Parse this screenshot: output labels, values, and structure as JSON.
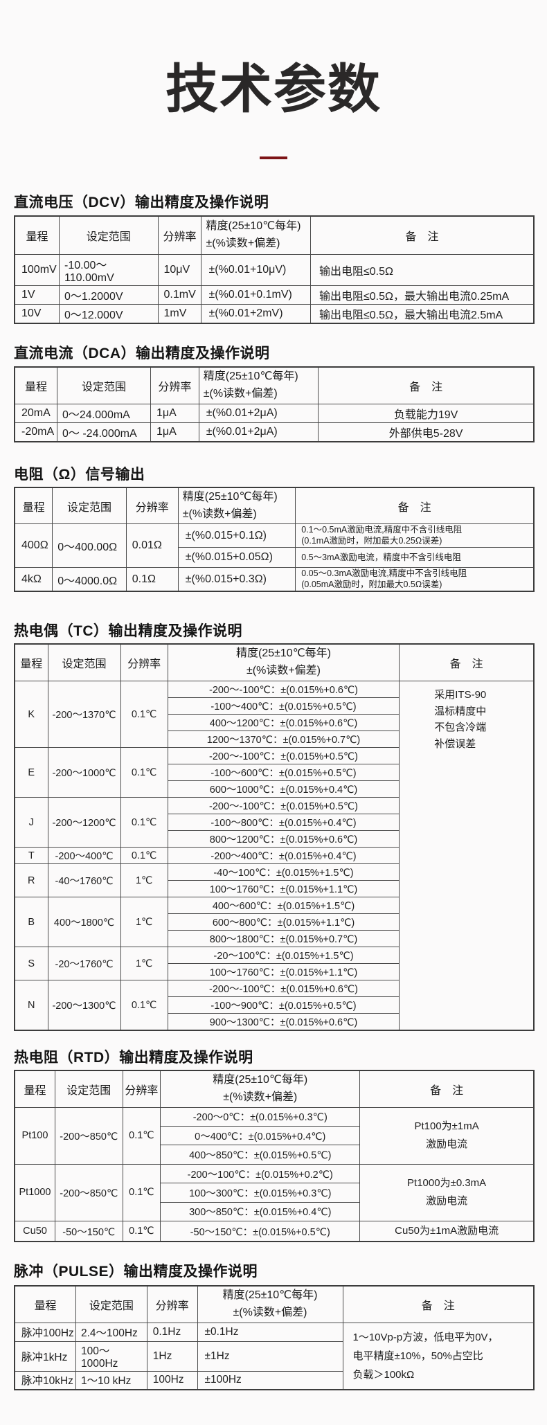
{
  "page": {
    "title": "技术参数",
    "accent_color": "#7d1416"
  },
  "column_headers": {
    "range": "量程",
    "set_range": "设定范围",
    "resolution": "分辨率",
    "accuracy_line1": "精度(25±10℃每年)",
    "accuracy_line2": "±(%读数+偏差)",
    "remark": "备　注"
  },
  "sections": [
    {
      "id": "dcv",
      "heading": "直流电压（DCV）输出精度及操作说明",
      "groups": [
        {
          "range": "100mV",
          "set_range": "-10.00～110.00mV",
          "resolution": "10μV",
          "rows": [
            {
              "accuracy": "±(%0.01+10μV)",
              "remark_lines": [
                "输出电阻≤0.5Ω"
              ]
            }
          ]
        },
        {
          "range": "1V",
          "set_range": "0～1.2000V",
          "resolution": "0.1mV",
          "rows": [
            {
              "accuracy": "±(%0.01+0.1mV)",
              "remark_lines": [
                "输出电阻≤0.5Ω，最大输出电流0.25mA"
              ]
            }
          ]
        },
        {
          "range": "10V",
          "set_range": "0～12.000V",
          "resolution": "1mV",
          "rows": [
            {
              "accuracy": "±(%0.01+2mV)",
              "remark_lines": [
                "输出电阻≤0.5Ω，最大输出电流2.5mA"
              ]
            }
          ]
        }
      ]
    },
    {
      "id": "dca",
      "heading": "直流电流（DCA）输出精度及操作说明",
      "groups": [
        {
          "range": "20mA",
          "set_range": "0～24.000mA",
          "resolution": "1μA",
          "rows": [
            {
              "accuracy": "±(%0.01+2μA)",
              "remark_lines": [
                "负载能力19V"
              ]
            }
          ]
        },
        {
          "range": "-20mA",
          "set_range": "0～ -24.000mA",
          "resolution": "1μA",
          "rows": [
            {
              "accuracy": "±(%0.01+2μA)",
              "remark_lines": [
                "外部供电5-28V"
              ]
            }
          ]
        }
      ]
    },
    {
      "id": "ohm",
      "heading": "电阻（Ω）信号输出",
      "groups": [
        {
          "range": "400Ω",
          "set_range": "0～400.00Ω",
          "resolution": "0.01Ω",
          "rows": [
            {
              "accuracy": "±(%0.015+0.1Ω)",
              "remark_lines": [
                "0.1～0.5mA激励电流,精度中不含引线电阻",
                "(0.1mA激励时，附加最大0.25Ω误差)"
              ]
            },
            {
              "accuracy": "±(%0.015+0.05Ω)",
              "remark_lines": [
                "0.5～3mA激励电流，精度中不含引线电阻"
              ]
            }
          ]
        },
        {
          "range": "4kΩ",
          "set_range": "0～4000.0Ω",
          "resolution": "0.1Ω",
          "rows": [
            {
              "accuracy": "±(%0.015+0.3Ω)",
              "remark_lines": [
                "0.05～0.3mA激励电流,精度中不含引线电阻",
                "(0.05mA激励时，附加最大0.5Ω误差)"
              ]
            }
          ]
        }
      ]
    },
    {
      "id": "tc",
      "heading": "热电偶（TC）输出精度及操作说明",
      "table_remark_lines": [
        "采用ITS-90",
        "温标精度中",
        "不包含冷端",
        "补偿误差"
      ],
      "groups": [
        {
          "range": "K",
          "set_range": "-200～1370℃",
          "resolution": "0.1℃",
          "rows": [
            {
              "accuracy": "-200～-100℃：±(0.015%+0.6℃)"
            },
            {
              "accuracy": "-100～400℃：±(0.015%+0.5℃)"
            },
            {
              "accuracy": "400～1200℃：±(0.015%+0.6℃)"
            },
            {
              "accuracy": "1200～1370℃：±(0.015%+0.7℃)"
            }
          ]
        },
        {
          "range": "E",
          "set_range": "-200～1000℃",
          "resolution": "0.1℃",
          "rows": [
            {
              "accuracy": "-200～-100℃：±(0.015%+0.5℃)"
            },
            {
              "accuracy": "-100～600℃：±(0.015%+0.5℃)"
            },
            {
              "accuracy": "600～1000℃：±(0.015%+0.4℃)"
            }
          ]
        },
        {
          "range": "J",
          "set_range": "-200～1200℃",
          "resolution": "0.1℃",
          "rows": [
            {
              "accuracy": "-200～-100℃：±(0.015%+0.5℃)"
            },
            {
              "accuracy": "-100～800℃：±(0.015%+0.4℃)"
            },
            {
              "accuracy": "800～1200℃：±(0.015%+0.6℃)"
            }
          ]
        },
        {
          "range": "T",
          "set_range": "-200～400℃",
          "resolution": "0.1℃",
          "rows": [
            {
              "accuracy": "-200～400℃：±(0.015%+0.4℃)"
            }
          ]
        },
        {
          "range": "R",
          "set_range": "-40～1760℃",
          "resolution": "1℃",
          "rows": [
            {
              "accuracy": "-40～100℃：±(0.015%+1.5℃)"
            },
            {
              "accuracy": "100～1760℃：±(0.015%+1.1℃)"
            }
          ]
        },
        {
          "range": "B",
          "set_range": "400～1800℃",
          "resolution": "1℃",
          "rows": [
            {
              "accuracy": "400～600℃：±(0.015%+1.5℃)"
            },
            {
              "accuracy": "600～800℃：±(0.015%+1.1℃)"
            },
            {
              "accuracy": "800～1800℃：±(0.015%+0.7℃)"
            }
          ]
        },
        {
          "range": "S",
          "set_range": "-20～1760℃",
          "resolution": "1℃",
          "rows": [
            {
              "accuracy": "-20～100℃：±(0.015%+1.5℃)"
            },
            {
              "accuracy": "100～1760℃：±(0.015%+1.1℃)"
            }
          ]
        },
        {
          "range": "N",
          "set_range": "-200～1300℃",
          "resolution": "0.1℃",
          "rows": [
            {
              "accuracy": "-200～-100℃：±(0.015%+0.6℃)"
            },
            {
              "accuracy": "-100～900℃：±(0.015%+0.5℃)"
            },
            {
              "accuracy": "900～1300℃：±(0.015%+0.6℃)"
            }
          ]
        }
      ]
    },
    {
      "id": "rtd",
      "heading": "热电阻（RTD）输出精度及操作说明",
      "groups": [
        {
          "range": "Pt100",
          "set_range": "-200～850℃",
          "resolution": "0.1℃",
          "remark_lines": [
            "Pt100为±1mA",
            "激励电流"
          ],
          "rows": [
            {
              "accuracy": "-200～0℃：±(0.015%+0.3℃)"
            },
            {
              "accuracy": "0～400℃：±(0.015%+0.4℃)"
            },
            {
              "accuracy": "400～850℃：±(0.015%+0.5℃)"
            }
          ]
        },
        {
          "range": "Pt1000",
          "set_range": "-200～850℃",
          "resolution": "0.1℃",
          "remark_lines": [
            "Pt1000为±0.3mA",
            "激励电流"
          ],
          "rows": [
            {
              "accuracy": "-200～100℃：±(0.015%+0.2℃)"
            },
            {
              "accuracy": "100～300℃：±(0.015%+0.3℃)"
            },
            {
              "accuracy": "300～850℃：±(0.015%+0.4℃)"
            }
          ]
        },
        {
          "range": "Cu50",
          "set_range": "-50～150℃",
          "resolution": "0.1℃",
          "remark_lines": [
            "Cu50为±1mA激励电流"
          ],
          "rows": [
            {
              "accuracy": "-50～150℃：±(0.015%+0.5℃)"
            }
          ]
        }
      ]
    },
    {
      "id": "pulse",
      "heading": "脉冲（PULSE）输出精度及操作说明",
      "table_remark_lines": [
        "1～10Vp-p方波，低电平为0V，",
        "电平精度±10%，50%占空比",
        "负载＞100kΩ"
      ],
      "groups": [
        {
          "range": "脉冲100Hz",
          "set_range": "2.4～100Hz",
          "resolution": "0.1Hz",
          "rows": [
            {
              "accuracy": "±0.1Hz"
            }
          ]
        },
        {
          "range": "脉冲1kHz",
          "set_range": "100～1000Hz",
          "resolution": "1Hz",
          "rows": [
            {
              "accuracy": "±1Hz"
            }
          ]
        },
        {
          "range": "脉冲10kHz",
          "set_range": "1～10 kHz",
          "resolution": "100Hz",
          "rows": [
            {
              "accuracy": "±100Hz"
            }
          ]
        }
      ]
    }
  ]
}
